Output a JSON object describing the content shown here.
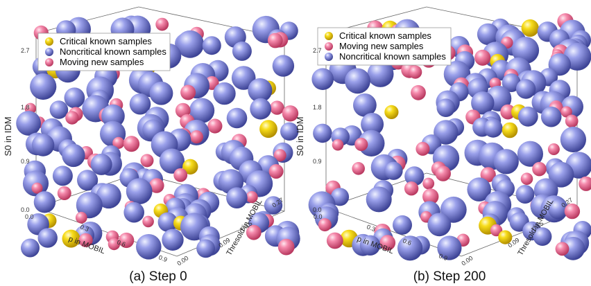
{
  "colors": {
    "critical": "#f4d000",
    "noncritical": "#7b80d6",
    "moving": "#f07ca0"
  },
  "chart_data": [
    {
      "type": "scatter",
      "subtype": "3d-bubble",
      "caption": "(a) Step 0",
      "zlabel": "S0 in IDM",
      "xlabel": "p in MOBIL",
      "ylabel": "Thresold in MOBIL",
      "z_ticks": [
        "0.0",
        "0.9",
        "1.8",
        "2.7"
      ],
      "x_ticks": [
        "0.0",
        "0.3",
        "0.6",
        "0.9"
      ],
      "y_ticks": [
        "0.00",
        "0.09",
        "0.15",
        "0.27"
      ],
      "legend": [
        "Critical known samples",
        "Noncritical known samples",
        "Moving new samples"
      ],
      "legend_series": [
        "critical",
        "noncritical",
        "moving"
      ]
    },
    {
      "type": "scatter",
      "subtype": "3d-bubble",
      "caption": "(b) Step 200",
      "zlabel": "S0 in IDM",
      "xlabel": "p in MOBIL",
      "ylabel": "Thresold in MOBIL",
      "z_ticks": [
        "0.0",
        "0.9",
        "1.8",
        "2.7"
      ],
      "x_ticks": [
        "0.0",
        "0.3",
        "0.6",
        "0.9"
      ],
      "y_ticks": [
        "0.00",
        "0.09",
        "0.15",
        "0.27"
      ],
      "legend": [
        "Critical known samples",
        "Moving new samples",
        "Noncritical known samples"
      ],
      "legend_series": [
        "critical",
        "moving",
        "noncritical"
      ]
    }
  ]
}
